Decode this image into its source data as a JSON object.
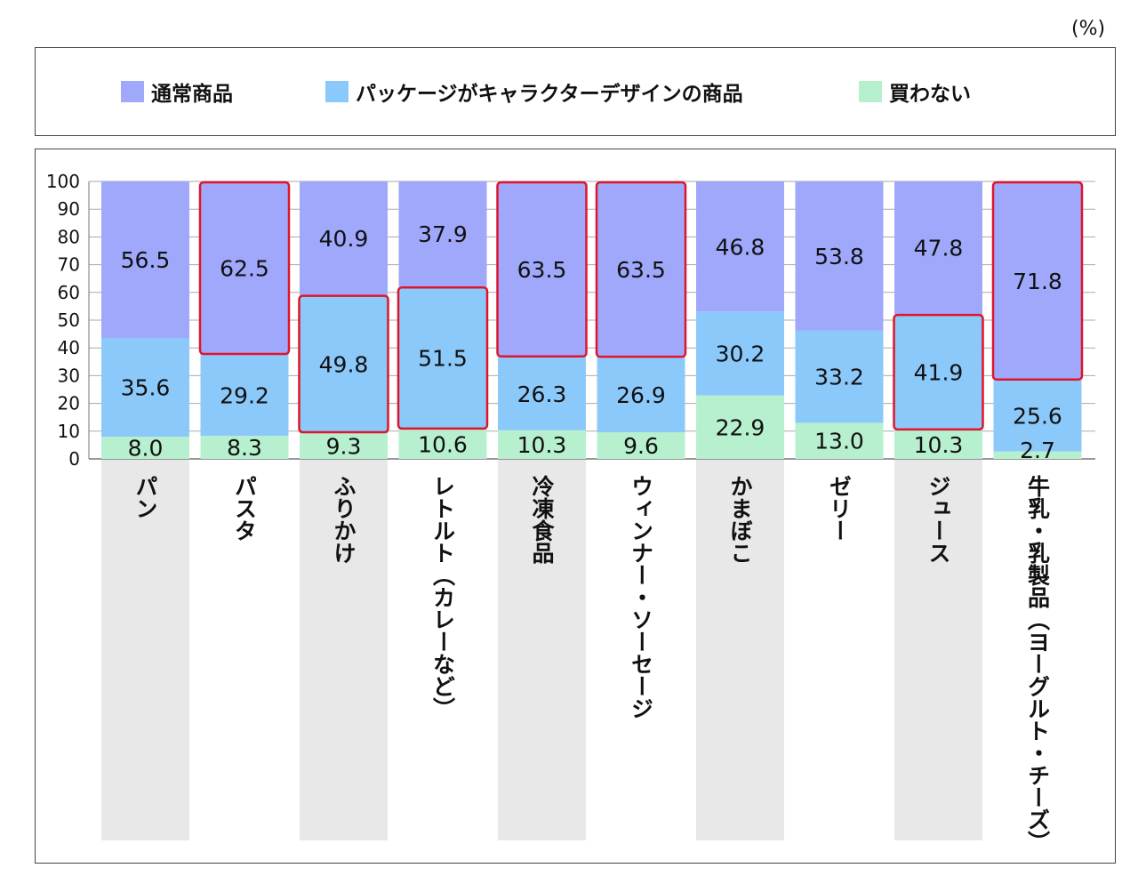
{
  "unit_label": "(%)",
  "colors": {
    "regular": "#9fa8fb",
    "character": "#8cc9fb",
    "none": "#b7f0cf",
    "highlight": "#e0142a",
    "column_bg": "#e8e8e8",
    "grid": "#aaaaaa"
  },
  "chart_data": {
    "type": "bar",
    "stacked": true,
    "title": "",
    "xlabel": "",
    "ylabel": "",
    "ylim": [
      0,
      100
    ],
    "yticks": [
      0,
      10,
      20,
      30,
      40,
      50,
      60,
      70,
      80,
      90,
      100
    ],
    "grid": true,
    "legend_position": "top",
    "categories": [
      "パン",
      "パスタ",
      "ふりかけ",
      "レトルト（カレーなど）",
      "冷凍食品",
      "ウィンナー・ソーセージ",
      "かまぼこ",
      "ゼリー",
      "ジュース",
      "牛乳・乳製品（ヨーグルト・チーズ）"
    ],
    "series": [
      {
        "name": "買わない",
        "key": "none",
        "values": [
          8.0,
          8.3,
          9.3,
          10.6,
          10.3,
          9.6,
          22.9,
          13.0,
          10.3,
          2.7
        ],
        "labels": [
          "8.0",
          "8.3",
          "9.3",
          "10.6",
          "10.3",
          "9.6",
          "22.9",
          "13.0",
          "10.3",
          "2.7"
        ]
      },
      {
        "name": "パッケージがキャラクターデザインの商品",
        "key": "character",
        "values": [
          35.6,
          29.2,
          49.8,
          51.5,
          26.3,
          26.9,
          30.2,
          33.2,
          41.9,
          25.6
        ],
        "labels": [
          "35.6",
          "29.2",
          "49.8",
          "51.5",
          "26.3",
          "26.9",
          "30.2",
          "33.2",
          "41.9",
          "25.6"
        ]
      },
      {
        "name": "通常商品",
        "key": "regular",
        "values": [
          56.5,
          62.5,
          40.9,
          37.9,
          63.5,
          63.5,
          46.8,
          53.8,
          47.8,
          71.8
        ],
        "labels": [
          "56.5",
          "62.5",
          "40.9",
          "37.9",
          "63.5",
          "63.5",
          "46.8",
          "53.8",
          "47.8",
          "71.8"
        ]
      }
    ],
    "highlights": [
      {
        "category": 1,
        "series": "regular"
      },
      {
        "category": 2,
        "series": "character"
      },
      {
        "category": 3,
        "series": "character"
      },
      {
        "category": 4,
        "series": "regular"
      },
      {
        "category": 5,
        "series": "regular"
      },
      {
        "category": 8,
        "series": "character"
      },
      {
        "category": 9,
        "series": "regular"
      }
    ]
  },
  "legend": [
    {
      "label": "通常商品",
      "color_key": "regular"
    },
    {
      "label": "パッケージがキャラクターデザインの商品",
      "color_key": "character"
    },
    {
      "label": "買わない",
      "color_key": "none"
    }
  ]
}
